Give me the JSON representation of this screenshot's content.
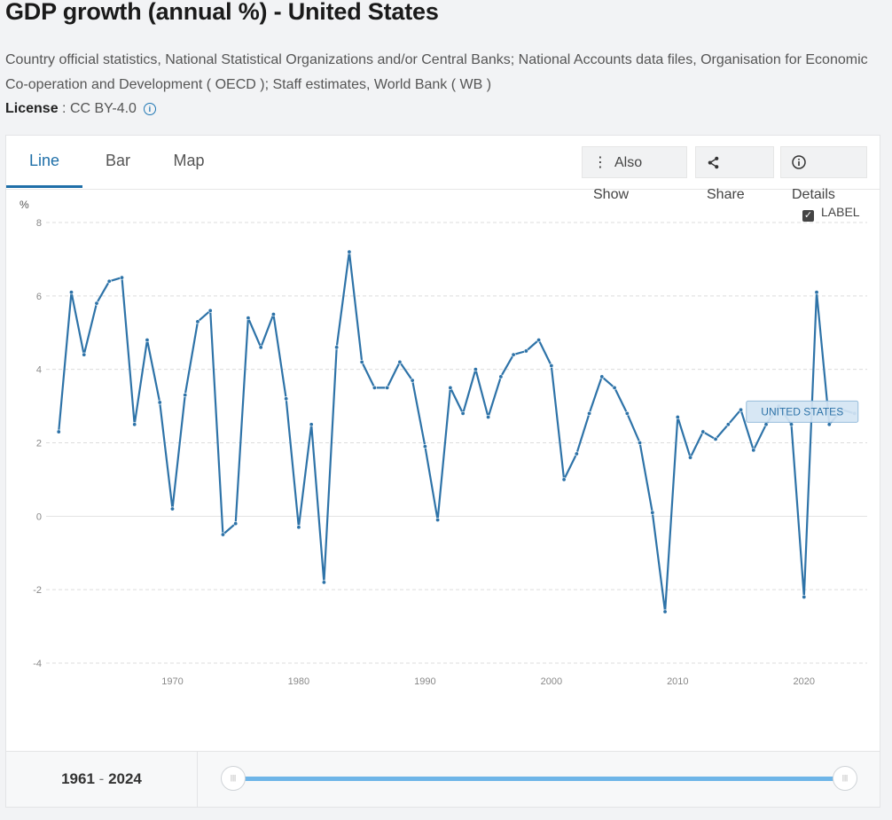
{
  "header": {
    "title": "GDP growth (annual %) - United States",
    "source": "Country official statistics, National Statistical Organizations and/or Central Banks; National Accounts data files, Organisation for Economic Co-operation and Development ( OECD ); Staff estimates, World Bank ( WB )",
    "license_label": "License",
    "license_sep": " : ",
    "license_value": "CC BY-4.0"
  },
  "tabs": [
    {
      "label": "Line",
      "active": true
    },
    {
      "label": "Bar",
      "active": false
    },
    {
      "label": "Map",
      "active": false
    }
  ],
  "toolbar": {
    "also_show": "Also Show",
    "share": "Share",
    "details": "Details"
  },
  "legend_toggle": {
    "label": "LABEL",
    "checked": true
  },
  "range": {
    "start": "1961",
    "sep": "-",
    "end": "2024"
  },
  "chart_data": {
    "type": "line",
    "ylabel": "%",
    "ylim": [
      -4,
      8
    ],
    "yticks": [
      -4,
      -2,
      0,
      2,
      4,
      6,
      8
    ],
    "xlim": [
      1960,
      2025
    ],
    "xticks": [
      1970,
      1980,
      1990,
      2000,
      2010,
      2020
    ],
    "grid": true,
    "line_color": "#2e73a8",
    "series": [
      {
        "name": "UNITED STATES",
        "x": [
          1961,
          1962,
          1963,
          1964,
          1965,
          1966,
          1967,
          1968,
          1969,
          1970,
          1971,
          1972,
          1973,
          1974,
          1975,
          1976,
          1977,
          1978,
          1979,
          1980,
          1981,
          1982,
          1983,
          1984,
          1985,
          1986,
          1987,
          1988,
          1989,
          1990,
          1991,
          1992,
          1993,
          1994,
          1995,
          1996,
          1997,
          1998,
          1999,
          2000,
          2001,
          2002,
          2003,
          2004,
          2005,
          2006,
          2007,
          2008,
          2009,
          2010,
          2011,
          2012,
          2013,
          2014,
          2015,
          2016,
          2017,
          2018,
          2019,
          2020,
          2021,
          2022,
          2023,
          2024
        ],
        "values": [
          2.3,
          6.1,
          4.4,
          5.8,
          6.4,
          6.5,
          2.5,
          4.8,
          3.1,
          0.2,
          3.3,
          5.3,
          5.6,
          -0.5,
          -0.2,
          5.4,
          4.6,
          5.5,
          3.2,
          -0.3,
          2.5,
          -1.8,
          4.6,
          7.2,
          4.2,
          3.5,
          3.5,
          4.2,
          3.7,
          1.9,
          -0.1,
          3.5,
          2.8,
          4.0,
          2.7,
          3.8,
          4.4,
          4.5,
          4.8,
          4.1,
          1.0,
          1.7,
          2.8,
          3.8,
          3.5,
          2.8,
          2.0,
          0.1,
          -2.6,
          2.7,
          1.6,
          2.3,
          2.1,
          2.5,
          2.9,
          1.8,
          2.5,
          3.0,
          2.5,
          -2.2,
          6.1,
          2.5,
          2.9,
          2.8
        ]
      }
    ]
  }
}
